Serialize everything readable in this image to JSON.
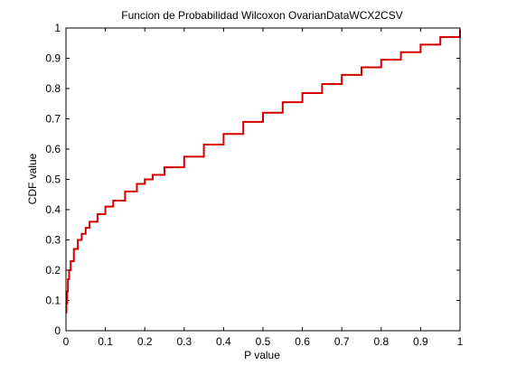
{
  "chart_data": {
    "type": "line",
    "title": "Funcion de Probabilidad Wilcoxon OvarianDataWCX2CSV",
    "xlabel": "P value",
    "ylabel": "CDF value",
    "xlim": [
      0,
      1
    ],
    "ylim": [
      0,
      1
    ],
    "grid": false,
    "legend": "none",
    "x_ticks": [
      "0",
      "0.1",
      "0.2",
      "0.3",
      "0.4",
      "0.5",
      "0.6",
      "0.7",
      "0.8",
      "0.9",
      "1"
    ],
    "y_ticks": [
      "0",
      "0.1",
      "0.2",
      "0.3",
      "0.4",
      "0.5",
      "0.6",
      "0.7",
      "0.8",
      "0.9",
      "1"
    ],
    "series": [
      {
        "color": "#d40000",
        "step": true,
        "x": [
          0,
          0.001,
          0.003,
          0.005,
          0.008,
          0.012,
          0.02,
          0.03,
          0.04,
          0.05,
          0.06,
          0.08,
          0.1,
          0.12,
          0.15,
          0.18,
          0.2,
          0.22,
          0.25,
          0.3,
          0.35,
          0.4,
          0.45,
          0.5,
          0.55,
          0.6,
          0.65,
          0.7,
          0.75,
          0.8,
          0.85,
          0.9,
          0.95,
          1.0
        ],
        "y": [
          0.06,
          0.09,
          0.13,
          0.17,
          0.2,
          0.23,
          0.27,
          0.3,
          0.32,
          0.34,
          0.36,
          0.385,
          0.41,
          0.43,
          0.46,
          0.485,
          0.5,
          0.515,
          0.54,
          0.575,
          0.615,
          0.65,
          0.69,
          0.72,
          0.755,
          0.785,
          0.815,
          0.845,
          0.87,
          0.895,
          0.92,
          0.945,
          0.97,
          0.995
        ]
      }
    ]
  }
}
